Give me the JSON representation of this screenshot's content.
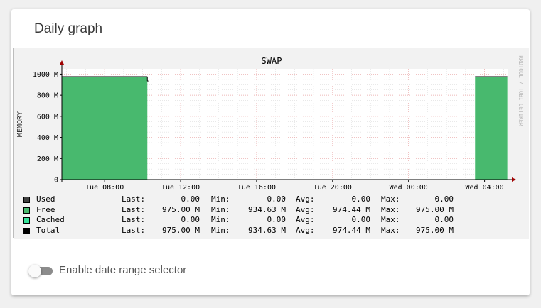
{
  "card": {
    "title": "Daily graph",
    "toggle": {
      "label": "Enable date range selector",
      "enabled": false
    }
  },
  "chart_data": {
    "type": "area",
    "title": "SWAP",
    "ylabel": "MEMORY",
    "side_label": "RRDTOOL / TOBI OETIKER",
    "ylim": [
      0,
      1050
    ],
    "yticks": [
      {
        "value": 0,
        "label": "0"
      },
      {
        "value": 200,
        "label": "200 M"
      },
      {
        "value": 400,
        "label": "400 M"
      },
      {
        "value": 600,
        "label": "600 M"
      },
      {
        "value": 800,
        "label": "800 M"
      },
      {
        "value": 1000,
        "label": "1000 M"
      }
    ],
    "xlim": [
      5.75,
      29.25
    ],
    "xticks": [
      {
        "value": 8,
        "label": "Tue 08:00"
      },
      {
        "value": 12,
        "label": "Tue 12:00"
      },
      {
        "value": 16,
        "label": "Tue 16:00"
      },
      {
        "value": 20,
        "label": "Tue 20:00"
      },
      {
        "value": 24,
        "label": "Wed 00:00"
      },
      {
        "value": 28,
        "label": "Wed 04:00"
      }
    ],
    "series": [
      {
        "name": "Free",
        "color": "#48b96e",
        "segments": [
          {
            "x": [
              5.75,
              10.25
            ],
            "y": [
              975,
              975
            ]
          },
          {
            "x": [
              27.5,
              29.2
            ],
            "y": [
              975,
              975
            ]
          }
        ]
      },
      {
        "name": "Total",
        "color": "#000000",
        "segments": [
          {
            "x": [
              5.75,
              10.25
            ],
            "y": [
              975,
              975
            ]
          },
          {
            "x": [
              10.25,
              10.3
            ],
            "y": [
              934.63,
              934.63
            ]
          },
          {
            "x": [
              27.5,
              29.2
            ],
            "y": [
              975,
              975
            ]
          }
        ]
      }
    ],
    "legend": {
      "headers": {
        "last": "Last:",
        "min": "Min:",
        "avg": "Avg:",
        "max": "Max:"
      },
      "rows": [
        {
          "name": "Used",
          "color": "#404040",
          "last": "0.00",
          "min": "0.00",
          "avg": "0.00",
          "max": "0.00"
        },
        {
          "name": "Free",
          "color": "#48b96e",
          "last": "975.00 M",
          "min": "934.63 M",
          "avg": "974.44 M",
          "max": "975.00 M"
        },
        {
          "name": "Cached",
          "color": "#37e39a",
          "last": "0.00",
          "min": "0.00",
          "avg": "0.00",
          "max": "0.00"
        },
        {
          "name": "Total",
          "color": "#000000",
          "last": "975.00 M",
          "min": "934.63 M",
          "avg": "974.44 M",
          "max": "975.00 M"
        }
      ]
    }
  }
}
